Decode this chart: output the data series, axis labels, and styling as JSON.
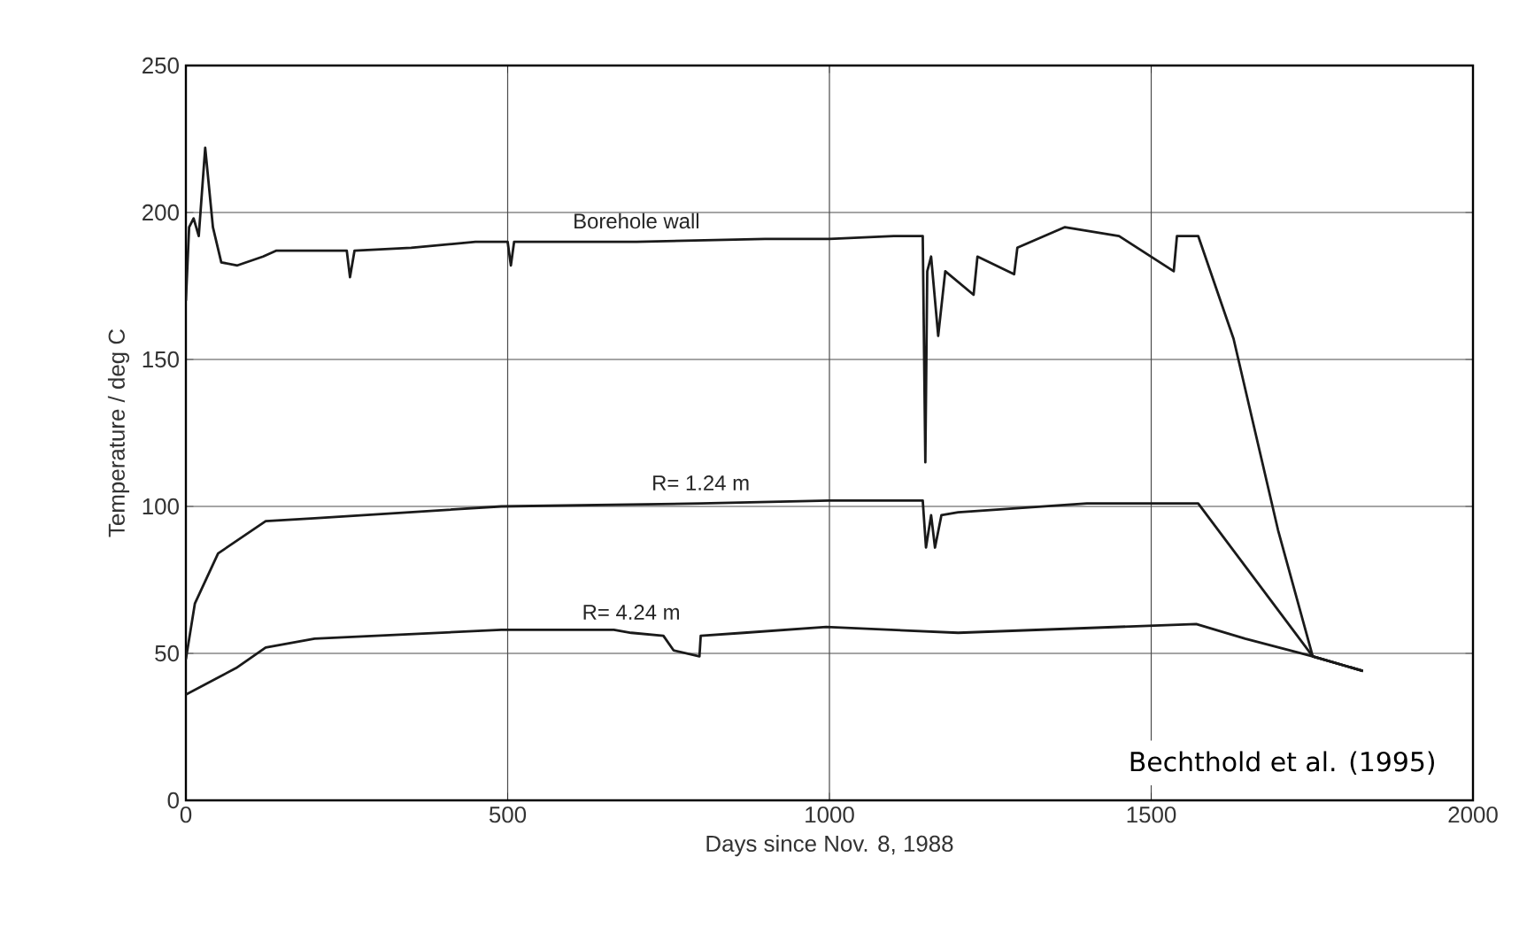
{
  "chart_data": {
    "type": "line",
    "xlabel": "Days since Nov. 8, 1988",
    "ylabel": "Temperature / deg C",
    "xlim": [
      0,
      2000
    ],
    "ylim": [
      0,
      250
    ],
    "xticks": [
      0,
      500,
      1000,
      1500,
      2000
    ],
    "yticks": [
      0,
      50,
      100,
      150,
      200,
      250
    ],
    "grid": true,
    "line_style": "solid",
    "annotations": [
      "Bechthold et al. (1995)"
    ],
    "series": [
      {
        "name": "Borehole wall",
        "color": "#1a1a1a",
        "x": [
          0,
          5,
          12,
          20,
          30,
          42,
          55,
          80,
          120,
          140,
          200,
          250,
          255,
          262,
          350,
          450,
          500,
          505,
          510,
          700,
          900,
          1000,
          1100,
          1145,
          1149,
          1152,
          1158,
          1169,
          1180,
          1224,
          1230,
          1287,
          1292,
          1366,
          1450,
          1535,
          1540,
          1573,
          1628,
          1697,
          1751,
          1829
        ],
        "values": [
          170,
          195,
          198,
          192,
          222,
          195,
          183,
          182,
          185,
          187,
          187,
          187,
          178,
          187,
          188,
          190,
          190,
          182,
          190,
          190,
          191,
          191,
          192,
          192,
          115,
          180,
          185,
          158,
          180,
          172,
          185,
          179,
          188,
          195,
          192,
          180,
          192,
          192,
          157,
          92,
          49,
          44
        ]
      },
      {
        "name": "R= 1.24 m",
        "color": "#1a1a1a",
        "x": [
          0,
          14,
          50,
          124,
          200,
          490,
          800,
          1000,
          1145,
          1150,
          1158,
          1164,
          1174,
          1200,
          1400,
          1573,
          1751,
          1829
        ],
        "values": [
          48,
          67,
          84,
          95,
          96,
          100,
          101,
          102,
          102,
          86,
          97,
          86,
          97,
          98,
          101,
          101,
          49,
          44
        ]
      },
      {
        "name": "R= 4.24 m",
        "color": "#1a1a1a",
        "x": [
          0,
          78,
          124,
          200,
          490,
          665,
          692,
          742,
          758,
          798,
          800,
          867,
          995,
          1200,
          1570,
          1646,
          1751,
          1829
        ],
        "values": [
          36,
          45,
          52,
          55,
          58,
          58,
          57,
          56,
          51,
          49,
          56,
          57,
          59,
          57,
          60,
          55,
          49,
          44
        ]
      }
    ]
  }
}
